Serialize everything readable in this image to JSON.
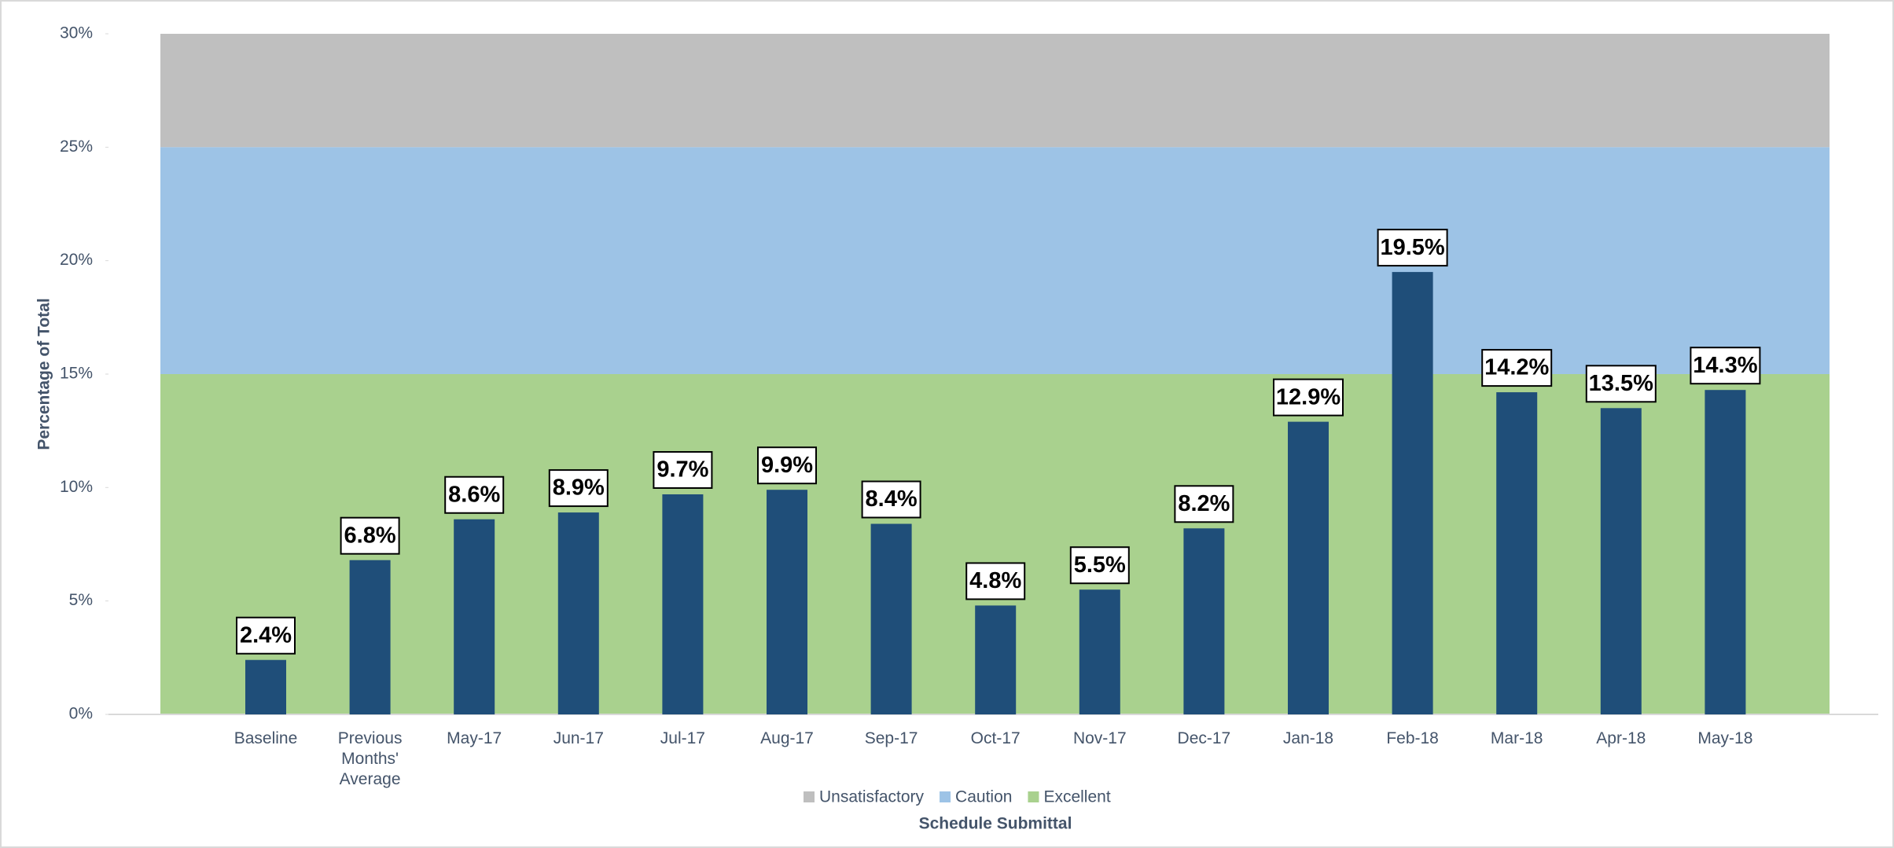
{
  "chart_data": {
    "type": "bar",
    "x_label": "Schedule Submittal",
    "y_label": "Percentage of Total",
    "categories": [
      "Baseline",
      "Previous Months' Average",
      "May-17",
      "Jun-17",
      "Jul-17",
      "Aug-17",
      "Sep-17",
      "Oct-17",
      "Nov-17",
      "Dec-17",
      "Jan-18",
      "Feb-18",
      "Mar-18",
      "Apr-18",
      "May-18"
    ],
    "values": [
      2.4,
      6.8,
      8.6,
      8.9,
      9.7,
      9.9,
      8.4,
      4.8,
      5.5,
      8.2,
      12.9,
      19.5,
      14.2,
      13.5,
      14.3
    ],
    "value_labels": [
      "2.4%",
      "6.8%",
      "8.6%",
      "8.9%",
      "9.7%",
      "9.9%",
      "8.4%",
      "4.8%",
      "5.5%",
      "8.2%",
      "12.9%",
      "19.5%",
      "14.2%",
      "13.5%",
      "14.3%"
    ],
    "color": "#1f4e79",
    "bands": [
      {
        "name": "Unsatisfactory",
        "color": "#bfbfbf",
        "from": 25,
        "to": 30
      },
      {
        "name": "Caution",
        "color": "#9dc3e6",
        "from": 15,
        "to": 25
      },
      {
        "name": "Excellent",
        "color": "#a9d18e",
        "from": 0,
        "to": 15
      }
    ],
    "ylim": [
      0,
      30
    ],
    "yticks": [
      {
        "value": 0,
        "label": "0%"
      },
      {
        "value": 5,
        "label": "5%"
      },
      {
        "value": 10,
        "label": "10%"
      },
      {
        "value": 15,
        "label": "15%"
      },
      {
        "value": 20,
        "label": "20%"
      },
      {
        "value": 25,
        "label": "25%"
      },
      {
        "value": 30,
        "label": "30%"
      }
    ],
    "legend": "bottom"
  }
}
